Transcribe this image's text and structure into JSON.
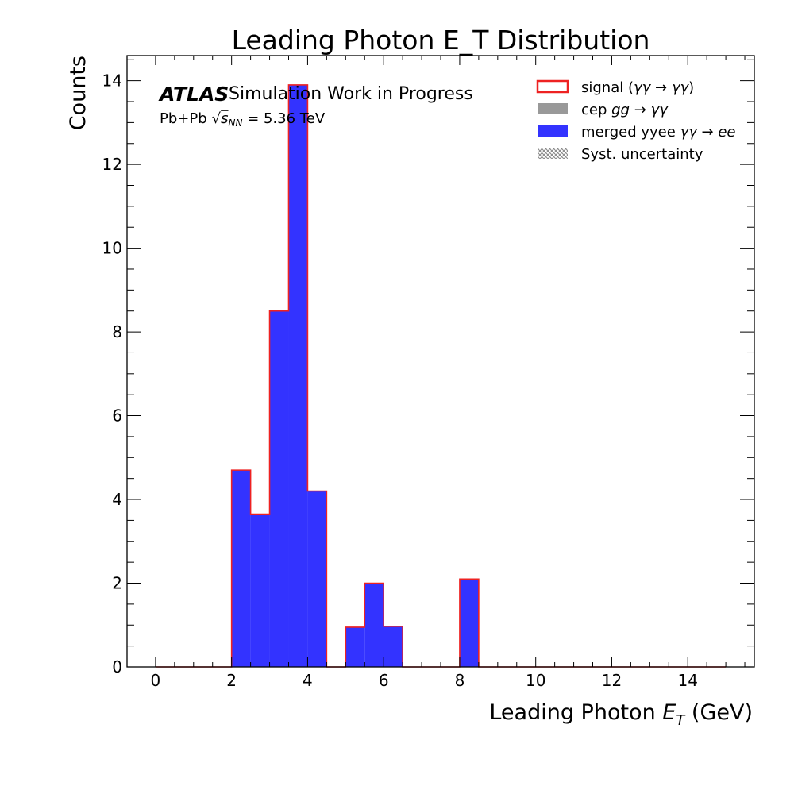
{
  "chart_data": {
    "type": "bar",
    "title": "Leading Photon E_T Distribution",
    "xlabel_main": "Leading Photon ",
    "xlabel_var": "E",
    "xlabel_sub": "T",
    "xlabel_unit": " (GeV)",
    "ylabel": "Counts",
    "xlim": [
      -0.75,
      15.75
    ],
    "ylim": [
      0,
      14.6
    ],
    "x_ticks": [
      0,
      2,
      4,
      6,
      8,
      10,
      12,
      14
    ],
    "y_ticks": [
      0,
      2,
      4,
      6,
      8,
      10,
      12,
      14
    ],
    "bin_edges": [
      0,
      0.5,
      1,
      1.5,
      2,
      2.5,
      3,
      3.5,
      4,
      4.5,
      5,
      5.5,
      6,
      6.5,
      7,
      7.5,
      8,
      8.5,
      9,
      9.5,
      10,
      10.5,
      11,
      11.5,
      12,
      12.5,
      13,
      13.5,
      14,
      14.5,
      15
    ],
    "series": [
      {
        "name": "signal (γγ → γγ)",
        "style": "step-outline",
        "color": "#ee2222",
        "values": [
          0,
          0,
          0,
          0,
          4.7,
          3.65,
          8.5,
          13.9,
          4.2,
          0,
          0.95,
          2.0,
          0.97,
          0,
          0,
          0,
          2.1,
          0,
          0,
          0,
          0,
          0,
          0,
          0,
          0,
          0,
          0,
          0,
          0,
          0
        ]
      },
      {
        "name": "cep gg → γγ",
        "style": "filled",
        "color": "#999999",
        "values": [
          0,
          0,
          0,
          0,
          0,
          0,
          0,
          0,
          0,
          0,
          0,
          0,
          0,
          0,
          0,
          0,
          0,
          0,
          0,
          0,
          0,
          0,
          0,
          0,
          0,
          0,
          0,
          0,
          0,
          0
        ]
      },
      {
        "name": "merged yyee γγ → ee",
        "style": "filled",
        "color": "#3333ff",
        "values": [
          0,
          0,
          0,
          0,
          4.7,
          3.65,
          8.5,
          13.9,
          4.2,
          0,
          0.95,
          2.0,
          0.97,
          0,
          0,
          0,
          2.1,
          0,
          0,
          0,
          0,
          0,
          0,
          0,
          0,
          0,
          0,
          0,
          0,
          0
        ]
      }
    ],
    "legend": {
      "placement": "top-right",
      "entries": [
        {
          "label": "signal (",
          "math": "γγ → γγ",
          "tail": ")",
          "swatch": "outline",
          "color": "#ee2222"
        },
        {
          "label": "cep ",
          "math": "gg → γγ",
          "tail": "",
          "swatch": "fill",
          "color": "#999999"
        },
        {
          "label": "merged yyee ",
          "math": "γγ → ee",
          "tail": "",
          "swatch": "fill",
          "color": "#3333ff"
        },
        {
          "label": "Syst. uncertainty",
          "math": "",
          "tail": "",
          "swatch": "hatch",
          "color": "#888888"
        }
      ]
    },
    "annotation": {
      "brand": "ATLAS",
      "status": "Simulation Work in Progress",
      "collision": "Pb+Pb",
      "energy_var": "s",
      "energy_sub": "NN",
      "energy_value": " = 5.36 TeV"
    }
  }
}
